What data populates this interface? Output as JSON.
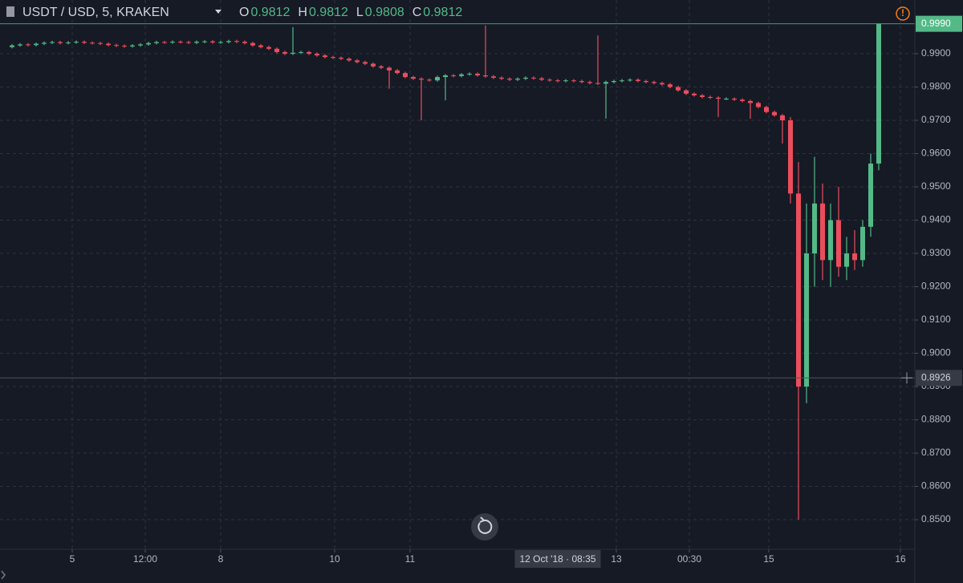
{
  "chart_data": {
    "type": "candlestick",
    "title": "USDT / USD, 5, KRAKEN",
    "header_values": [
      {
        "name": "O",
        "value": 0.9812
      },
      {
        "name": "H",
        "value": 0.9812
      },
      {
        "name": "L",
        "value": 0.9808
      },
      {
        "name": "C",
        "value": 0.9812
      }
    ],
    "up_color": "#53b987",
    "down_color": "#eb4d5c",
    "grid": true,
    "xlim": [
      0,
      113
    ],
    "xticks": [
      {
        "value": 8,
        "label": "5"
      },
      {
        "value": 17.1,
        "label": "12:00"
      },
      {
        "value": 26.5,
        "label": "8"
      },
      {
        "value": 40.7,
        "label": "10"
      },
      {
        "value": 50.1,
        "label": "11"
      },
      {
        "value": 75.8,
        "label": "13"
      },
      {
        "value": 84.9,
        "label": "00:30"
      },
      {
        "value": 94.8,
        "label": "15"
      },
      {
        "value": 111.2,
        "label": "16"
      }
    ],
    "ylim": [
      0.8411,
      0.9994
    ],
    "yticks": [
      {
        "value": 0.85,
        "label": "0.8500"
      },
      {
        "value": 0.86,
        "label": "0.8600"
      },
      {
        "value": 0.87,
        "label": "0.8700"
      },
      {
        "value": 0.88,
        "label": "0.8800"
      },
      {
        "value": 0.89,
        "label": "0.8900"
      },
      {
        "value": 0.9,
        "label": "0.9000"
      },
      {
        "value": 0.91,
        "label": "0.9100"
      },
      {
        "value": 0.92,
        "label": "0.9200"
      },
      {
        "value": 0.93,
        "label": "0.9300"
      },
      {
        "value": 0.94,
        "label": "0.9400"
      },
      {
        "value": 0.95,
        "label": "0.9500"
      },
      {
        "value": 0.96,
        "label": "0.9600"
      },
      {
        "value": 0.97,
        "label": "0.9700"
      },
      {
        "value": 0.98,
        "label": "0.9800"
      },
      {
        "value": 0.99,
        "label": "0.9900"
      }
    ],
    "last_price": {
      "value": 0.999,
      "label": "0.9990"
    },
    "crosshair": {
      "x": 68.5,
      "x_label": "12 Oct '18 · 08:35",
      "y": 0.8926
    },
    "open": [
      0.992,
      0.9925,
      0.9928,
      0.9926,
      0.993,
      0.9933,
      0.9935,
      0.9932,
      0.9934,
      0.9936,
      0.9933,
      0.9932,
      0.993,
      0.9926,
      0.9924,
      0.9922,
      0.9925,
      0.9928,
      0.9932,
      0.9935,
      0.9934,
      0.9936,
      0.9935,
      0.9933,
      0.9936,
      0.9937,
      0.9934,
      0.9935,
      0.9938,
      0.9936,
      0.9932,
      0.9925,
      0.992,
      0.9915,
      0.9905,
      0.99,
      0.9903,
      0.9905,
      0.99,
      0.9895,
      0.989,
      0.9888,
      0.9885,
      0.988,
      0.9875,
      0.987,
      0.9862,
      0.9858,
      0.985,
      0.9842,
      0.983,
      0.9825,
      0.9822,
      0.982,
      0.983,
      0.9835,
      0.9833,
      0.9838,
      0.984,
      0.9835,
      0.9832,
      0.9828,
      0.9825,
      0.9822,
      0.9825,
      0.9828,
      0.9826,
      0.9822,
      0.982,
      0.9818,
      0.982,
      0.9818,
      0.9815,
      0.9812,
      0.981,
      0.9815,
      0.9818,
      0.982,
      0.9822,
      0.9818,
      0.9815,
      0.9812,
      0.9808,
      0.98,
      0.979,
      0.978,
      0.9775,
      0.977,
      0.9768,
      0.9765,
      0.9765,
      0.9762,
      0.9758,
      0.9752,
      0.974,
      0.9725,
      0.9715,
      0.97,
      0.948,
      0.89,
      0.93,
      0.945,
      0.928,
      0.94,
      0.926,
      0.93,
      0.928,
      0.938,
      0.957
    ],
    "high": [
      0.9929,
      0.9932,
      0.9932,
      0.9934,
      0.9937,
      0.9939,
      0.9939,
      0.9938,
      0.994,
      0.994,
      0.9937,
      0.9936,
      0.9934,
      0.993,
      0.9928,
      0.9929,
      0.9932,
      0.9936,
      0.9939,
      0.9939,
      0.994,
      0.994,
      0.9939,
      0.994,
      0.9941,
      0.9941,
      0.9939,
      0.9942,
      0.9942,
      0.994,
      0.9936,
      0.9929,
      0.9924,
      0.9919,
      0.9909,
      0.998,
      0.9909,
      0.9909,
      0.9904,
      0.9899,
      0.9894,
      0.9892,
      0.9889,
      0.9884,
      0.9879,
      0.9874,
      0.9866,
      0.9862,
      0.9854,
      0.9846,
      0.9834,
      0.9829,
      0.9826,
      0.9834,
      0.9839,
      0.9839,
      0.9842,
      0.9844,
      0.9844,
      0.9985,
      0.9836,
      0.9832,
      0.9829,
      0.9829,
      0.9832,
      0.9832,
      0.983,
      0.9826,
      0.9824,
      0.9824,
      0.9824,
      0.9822,
      0.9819,
      0.9955,
      0.9819,
      0.9822,
      0.9824,
      0.9826,
      0.9826,
      0.9822,
      0.9819,
      0.9816,
      0.9812,
      0.9804,
      0.9794,
      0.9784,
      0.9779,
      0.9774,
      0.9772,
      0.9769,
      0.9769,
      0.9766,
      0.9762,
      0.9756,
      0.9744,
      0.9729,
      0.9719,
      0.971,
      0.9575,
      0.945,
      0.959,
      0.951,
      0.945,
      0.95,
      0.935,
      0.937,
      0.94,
      0.96,
      0.999
    ],
    "low": [
      0.9916,
      0.9921,
      0.9922,
      0.9922,
      0.9926,
      0.9929,
      0.9928,
      0.9928,
      0.993,
      0.9929,
      0.9928,
      0.9926,
      0.9922,
      0.992,
      0.9918,
      0.9918,
      0.9921,
      0.9924,
      0.9928,
      0.993,
      0.993,
      0.9931,
      0.9929,
      0.9929,
      0.9932,
      0.993,
      0.993,
      0.9931,
      0.9932,
      0.9928,
      0.9921,
      0.9916,
      0.9911,
      0.9901,
      0.9896,
      0.9896,
      0.9899,
      0.9896,
      0.9891,
      0.9886,
      0.9884,
      0.9881,
      0.9876,
      0.9871,
      0.9866,
      0.9858,
      0.9854,
      0.9795,
      0.9838,
      0.9826,
      0.9821,
      0.97,
      0.9816,
      0.9816,
      0.976,
      0.9829,
      0.9829,
      0.9834,
      0.9831,
      0.9828,
      0.9824,
      0.9821,
      0.9818,
      0.9818,
      0.9821,
      0.9822,
      0.9818,
      0.9816,
      0.9814,
      0.9814,
      0.9814,
      0.9811,
      0.9808,
      0.9806,
      0.9705,
      0.9811,
      0.9814,
      0.9816,
      0.9814,
      0.9811,
      0.9808,
      0.9804,
      0.9796,
      0.9786,
      0.9776,
      0.9771,
      0.9766,
      0.9764,
      0.971,
      0.9761,
      0.9758,
      0.9754,
      0.9705,
      0.9736,
      0.9721,
      0.9711,
      0.963,
      0.945,
      0.85,
      0.885,
      0.92,
      0.922,
      0.92,
      0.923,
      0.922,
      0.925,
      0.926,
      0.935,
      0.955
    ],
    "close": [
      0.9925,
      0.9928,
      0.9926,
      0.993,
      0.9933,
      0.9935,
      0.9932,
      0.9934,
      0.9936,
      0.9933,
      0.9932,
      0.993,
      0.9926,
      0.9924,
      0.9922,
      0.9925,
      0.9928,
      0.9932,
      0.9935,
      0.9934,
      0.9936,
      0.9935,
      0.9933,
      0.9936,
      0.9937,
      0.9934,
      0.9935,
      0.9938,
      0.9936,
      0.9932,
      0.9925,
      0.992,
      0.9915,
      0.9905,
      0.99,
      0.9903,
      0.9905,
      0.99,
      0.9895,
      0.989,
      0.9888,
      0.9885,
      0.988,
      0.9875,
      0.987,
      0.9862,
      0.9858,
      0.985,
      0.9842,
      0.983,
      0.9825,
      0.9822,
      0.982,
      0.983,
      0.9835,
      0.9833,
      0.9838,
      0.984,
      0.9835,
      0.9832,
      0.9828,
      0.9825,
      0.9822,
      0.9825,
      0.9828,
      0.9826,
      0.9822,
      0.982,
      0.9818,
      0.982,
      0.9818,
      0.9815,
      0.9812,
      0.981,
      0.9815,
      0.9818,
      0.982,
      0.9822,
      0.9818,
      0.9815,
      0.9812,
      0.9808,
      0.98,
      0.979,
      0.978,
      0.9775,
      0.977,
      0.9768,
      0.9765,
      0.9765,
      0.9762,
      0.9758,
      0.9752,
      0.974,
      0.9725,
      0.9715,
      0.97,
      0.948,
      0.89,
      0.93,
      0.945,
      0.928,
      0.94,
      0.926,
      0.93,
      0.928,
      0.938,
      0.957,
      0.999
    ]
  }
}
